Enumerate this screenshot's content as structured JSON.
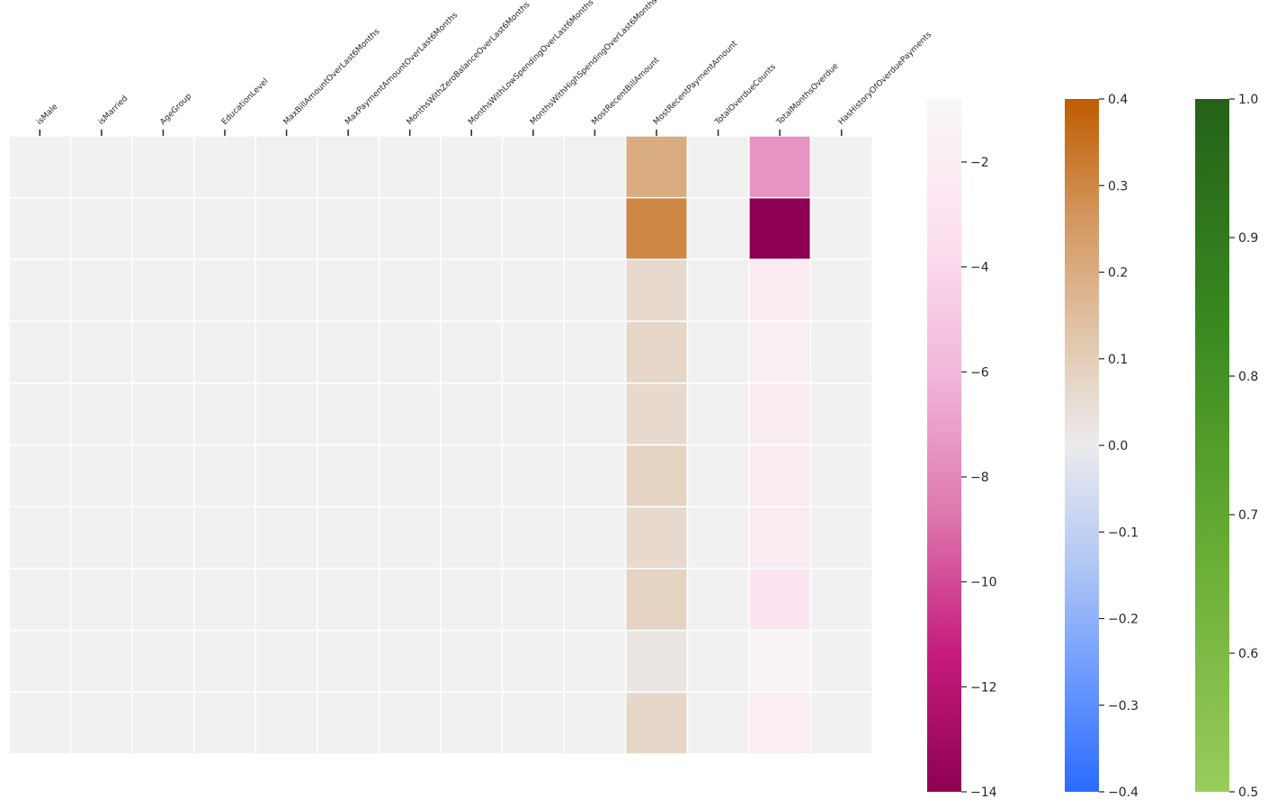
{
  "chart_data": {
    "type": "heatmap",
    "columns": [
      "isMale",
      "isMarried",
      "AgeGroup",
      "EducationLevel",
      "MaxBillAmountOverLast6Months",
      "MaxPaymentAmountOverLast6Months",
      "MonthsWithZeroBalanceOverLast6Months",
      "MonthsWithLowSpendingOverLast6Months",
      "MonthsWithHighSpendingOverLast6Months",
      "MostRecentBillAmount",
      "MostRecentPaymentAmount",
      "TotalOverdueCounts",
      "TotalMonthsOverdue",
      "HasHistoryOfOverduePayments"
    ],
    "rows": 10,
    "background_colors": [
      "#f2f1f2",
      "#f2f1f2",
      "#f2f1f2",
      "#f2f1f2",
      "#f0f0f2",
      "#f0f0f2",
      "#f2f1f2",
      "#f2f1f2",
      "#f2f1f2",
      "#f0f0f2",
      null,
      "#f2f1f2",
      null,
      "#f2f1f2"
    ],
    "highlight_columns": {
      "MostRecentPaymentAmount": {
        "colorbar": "brown",
        "values": [
          0.2,
          0.3,
          0.06,
          0.07,
          0.06,
          0.08,
          0.06,
          0.08,
          0.02,
          0.07
        ]
      },
      "TotalMonthsOverdue": {
        "colorbar": "pink",
        "values": [
          -7.5,
          -14.0,
          -2.2,
          -1.8,
          -2.1,
          -2.2,
          -2.2,
          -2.9,
          -1.3,
          -2.0
        ]
      }
    },
    "colorbars": [
      {
        "id": "pink",
        "ylim": [
          -14,
          -0.8
        ],
        "ticks": [
          "−2",
          "−4",
          "−6",
          "−8",
          "−10",
          "−12",
          "−14"
        ],
        "tick_values": [
          -2,
          -4,
          -6,
          -8,
          -10,
          -12,
          -14
        ],
        "colors": [
          "#8e0152",
          "#c51b7d",
          "#de77ae",
          "#f1b6da",
          "#fde0ef",
          "#f7f7f7"
        ]
      },
      {
        "id": "brown",
        "ylim": [
          -0.4,
          0.4
        ],
        "ticks": [
          "−0.4",
          "−0.3",
          "−0.2",
          "−0.1",
          "0.0",
          "0.1",
          "0.2",
          "0.3",
          "0.4"
        ],
        "tick_values": [
          -0.4,
          -0.3,
          -0.2,
          -0.1,
          0,
          0.1,
          0.2,
          0.3,
          0.4
        ],
        "colors": [
          "#2a6bff",
          "#6d9aff",
          "#b3c8f4",
          "#ecebee",
          "#e0c4a6",
          "#d3955c",
          "#bf5c00"
        ]
      },
      {
        "id": "green",
        "ylim": [
          0.5,
          1.0
        ],
        "ticks": [
          "0.5",
          "0.6",
          "0.7",
          "0.8",
          "0.9",
          "1.0"
        ],
        "tick_values": [
          0.5,
          0.6,
          0.7,
          0.8,
          0.9,
          1.0
        ],
        "colors": [
          "#99cc5c",
          "#6aae35",
          "#3a8a20",
          "#246118"
        ]
      }
    ],
    "grid": true,
    "title": "",
    "xlabel": "",
    "ylabel": ""
  }
}
